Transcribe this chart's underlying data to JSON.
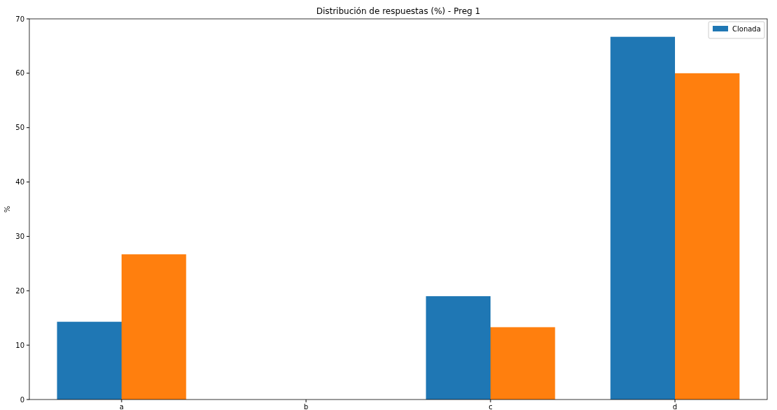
{
  "chart_data": {
    "type": "bar",
    "title": "Distribución de respuestas (%) - Preg 1",
    "ylabel": "%",
    "categories": [
      "a",
      "b",
      "c",
      "d"
    ],
    "series": [
      {
        "name": "Clonada",
        "color": "#1f77b4",
        "values": [
          14.3,
          0,
          19.0,
          66.7
        ]
      },
      {
        "color": "#ff7f0e",
        "values": [
          26.7,
          0,
          13.3,
          60.0
        ]
      }
    ],
    "ylim": [
      0,
      70
    ],
    "yticks": [
      0,
      10,
      20,
      30,
      40,
      50,
      60,
      70
    ],
    "legend": "top right"
  }
}
